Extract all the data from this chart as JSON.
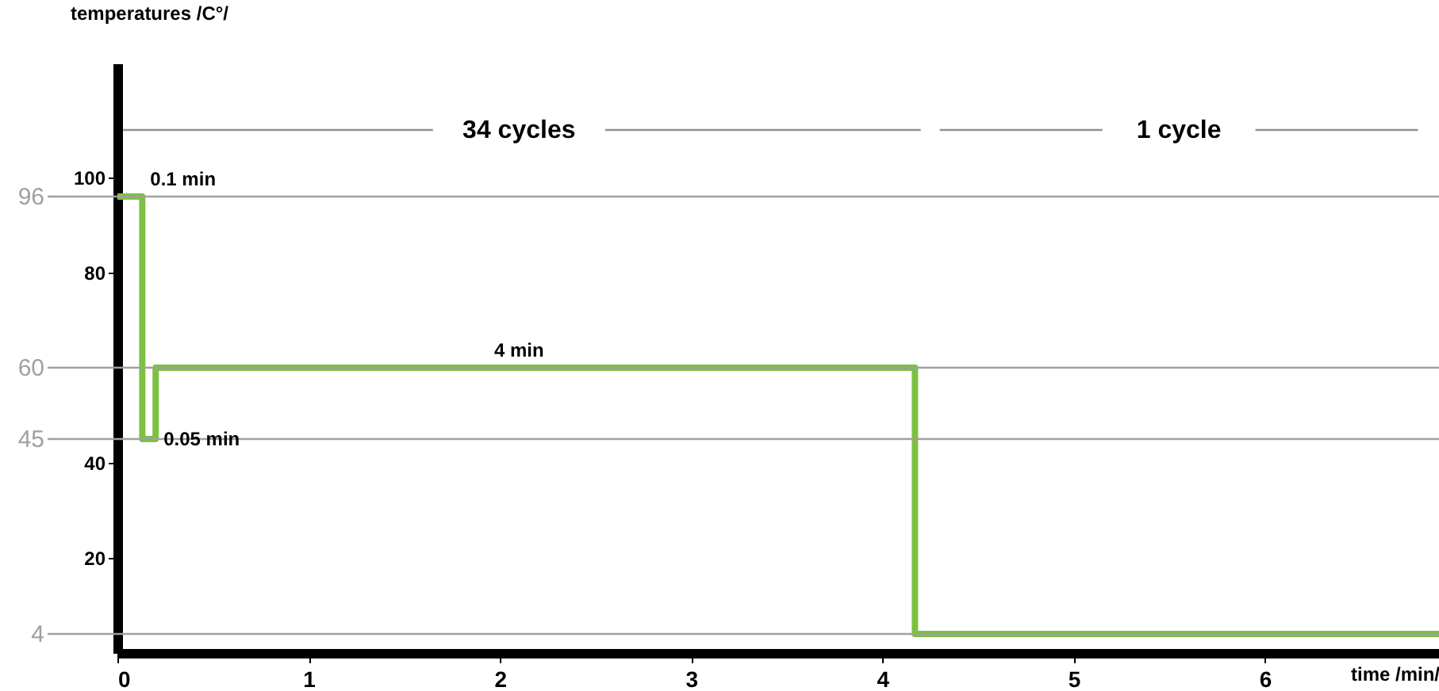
{
  "chart_data": {
    "type": "step",
    "xlabel": "time /min/",
    "ylabel": "temperatures /C°/",
    "x": [
      0,
      0.13,
      0.2,
      4.17,
      6.91
    ],
    "series": [
      {
        "color": "#7dc142",
        "values": [
          96,
          45,
          60,
          4,
          4
        ]
      },
      {
        "type": "line",
        "color": "#909090",
        "x": [
          0.03,
          1.65,
          2.1,
          2.55,
          4.2
        ],
        "values": [
          110,
          110,
          null,
          110,
          110
        ]
      },
      {
        "type": "line",
        "color": "#909090",
        "x": [
          4.3,
          5.15,
          5.55,
          5.95,
          6.8
        ],
        "values": [
          110,
          110,
          null,
          110,
          110
        ]
      }
    ],
    "xlim": [
      0,
      6.91
    ],
    "xticks": [
      0,
      1,
      2,
      3,
      4,
      5,
      6
    ],
    "ylim": [
      0,
      124
    ],
    "yticks": [
      20,
      40,
      80,
      100
    ],
    "ref_lines": [
      {
        "axis": "y",
        "value": 96,
        "label": "96",
        "color": "#a0a0a0"
      },
      {
        "axis": "y",
        "value": 60,
        "label": "60",
        "color": "#a0a0a0"
      },
      {
        "axis": "y",
        "value": 45,
        "label": "45",
        "color": "#a0a0a0"
      },
      {
        "axis": "y",
        "value": 4,
        "label": "4",
        "color": "#a0a0a0"
      }
    ],
    "annotations": [
      {
        "text": "0.1 min",
        "x": 0.13,
        "y": 96
      },
      {
        "text": "4 min",
        "x": 2.1,
        "y": 60
      },
      {
        "text": "0.05 min",
        "x": 0.2,
        "y": 45
      },
      "34 cycles",
      "1 cycle"
    ],
    "grid": false,
    "line_style": "solid",
    "marker": "none"
  }
}
